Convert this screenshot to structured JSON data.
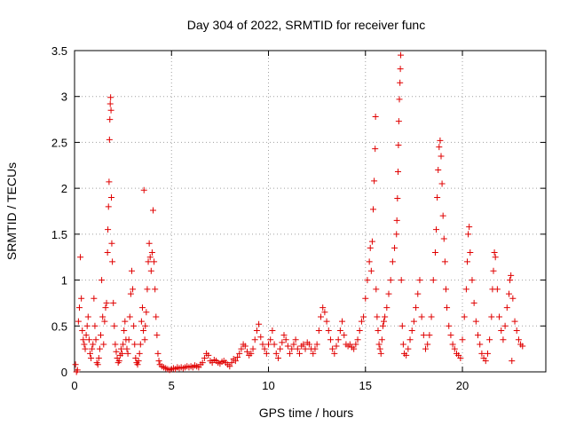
{
  "chart_data": {
    "type": "scatter",
    "title": "Day 304 of 2022, SRMTID for receiver func",
    "xlabel": "GPS time / hours",
    "ylabel": "SRMTID / TECUs",
    "xlim": [
      0,
      24.3
    ],
    "ylim": [
      0,
      3.5
    ],
    "xticks": [
      {
        "value": 0,
        "label": "0"
      },
      {
        "value": 5,
        "label": "5"
      },
      {
        "value": 10,
        "label": "10"
      },
      {
        "value": 15,
        "label": "15"
      },
      {
        "value": 20,
        "label": "20"
      }
    ],
    "yticks": [
      {
        "value": 0,
        "label": "0"
      },
      {
        "value": 0.5,
        "label": "0.5"
      },
      {
        "value": 1,
        "label": "1"
      },
      {
        "value": 1.5,
        "label": "1.5"
      },
      {
        "value": 2,
        "label": "2"
      },
      {
        "value": 2.5,
        "label": "2.5"
      },
      {
        "value": 3,
        "label": "3"
      },
      {
        "value": 3.5,
        "label": "3.5"
      }
    ],
    "grid": true,
    "marker": "+",
    "color": "#e00000",
    "series": [
      {
        "name": "SRMTID",
        "points": [
          [
            0.05,
            0.08
          ],
          [
            0.1,
            0.0
          ],
          [
            0.15,
            0.02
          ],
          [
            0.2,
            0.55
          ],
          [
            0.25,
            0.7
          ],
          [
            0.3,
            1.25
          ],
          [
            0.35,
            0.8
          ],
          [
            0.4,
            0.45
          ],
          [
            0.45,
            0.35
          ],
          [
            0.5,
            0.3
          ],
          [
            0.55,
            0.25
          ],
          [
            0.6,
            0.4
          ],
          [
            0.65,
            0.5
          ],
          [
            0.7,
            0.6
          ],
          [
            0.75,
            0.35
          ],
          [
            0.8,
            0.2
          ],
          [
            0.85,
            0.15
          ],
          [
            0.9,
            0.25
          ],
          [
            0.95,
            0.3
          ],
          [
            1.0,
            0.8
          ],
          [
            1.05,
            0.5
          ],
          [
            1.1,
            0.35
          ],
          [
            1.15,
            0.1
          ],
          [
            1.2,
            0.08
          ],
          [
            1.25,
            0.15
          ],
          [
            1.3,
            0.25
          ],
          [
            1.35,
            0.4
          ],
          [
            1.4,
            1.0
          ],
          [
            1.45,
            0.6
          ],
          [
            1.5,
            0.3
          ],
          [
            1.55,
            0.55
          ],
          [
            1.6,
            0.7
          ],
          [
            1.65,
            0.75
          ],
          [
            1.7,
            1.3
          ],
          [
            1.72,
            1.55
          ],
          [
            1.75,
            1.8
          ],
          [
            1.78,
            2.07
          ],
          [
            1.8,
            2.53
          ],
          [
            1.82,
            2.75
          ],
          [
            1.84,
            2.92
          ],
          [
            1.86,
            2.99
          ],
          [
            1.88,
            2.85
          ],
          [
            1.9,
            1.9
          ],
          [
            1.92,
            1.4
          ],
          [
            1.95,
            1.2
          ],
          [
            2.0,
            0.75
          ],
          [
            2.05,
            0.5
          ],
          [
            2.1,
            0.3
          ],
          [
            2.15,
            0.22
          ],
          [
            2.2,
            0.15
          ],
          [
            2.25,
            0.1
          ],
          [
            2.3,
            0.12
          ],
          [
            2.35,
            0.18
          ],
          [
            2.4,
            0.25
          ],
          [
            2.45,
            0.2
          ],
          [
            2.5,
            0.3
          ],
          [
            2.55,
            0.45
          ],
          [
            2.6,
            0.55
          ],
          [
            2.65,
            0.35
          ],
          [
            2.7,
            0.25
          ],
          [
            2.75,
            0.2
          ],
          [
            2.8,
            0.35
          ],
          [
            2.85,
            0.6
          ],
          [
            2.9,
            0.85
          ],
          [
            2.95,
            1.1
          ],
          [
            3.0,
            0.9
          ],
          [
            3.05,
            0.5
          ],
          [
            3.1,
            0.3
          ],
          [
            3.15,
            0.15
          ],
          [
            3.2,
            0.1
          ],
          [
            3.25,
            0.08
          ],
          [
            3.3,
            0.12
          ],
          [
            3.35,
            0.2
          ],
          [
            3.4,
            0.3
          ],
          [
            3.45,
            0.55
          ],
          [
            3.5,
            0.7
          ],
          [
            3.55,
            0.45
          ],
          [
            3.58,
            1.98
          ],
          [
            3.62,
            0.35
          ],
          [
            3.65,
            0.5
          ],
          [
            3.7,
            0.65
          ],
          [
            3.75,
            0.9
          ],
          [
            3.8,
            1.2
          ],
          [
            3.85,
            1.4
          ],
          [
            3.9,
            1.25
          ],
          [
            3.95,
            1.1
          ],
          [
            4.0,
            1.3
          ],
          [
            4.05,
            1.76
          ],
          [
            4.1,
            1.2
          ],
          [
            4.15,
            0.9
          ],
          [
            4.2,
            0.6
          ],
          [
            4.25,
            0.4
          ],
          [
            4.3,
            0.2
          ],
          [
            4.35,
            0.12
          ],
          [
            4.4,
            0.08
          ],
          [
            4.5,
            0.06
          ],
          [
            4.6,
            0.05
          ],
          [
            4.7,
            0.04
          ],
          [
            4.8,
            0.03
          ],
          [
            4.9,
            0.02
          ],
          [
            5.0,
            0.03
          ],
          [
            5.1,
            0.04
          ],
          [
            5.2,
            0.03
          ],
          [
            5.3,
            0.05
          ],
          [
            5.4,
            0.04
          ],
          [
            5.5,
            0.05
          ],
          [
            5.6,
            0.04
          ],
          [
            5.7,
            0.05
          ],
          [
            5.8,
            0.06
          ],
          [
            5.9,
            0.05
          ],
          [
            6.0,
            0.06
          ],
          [
            6.1,
            0.05
          ],
          [
            6.2,
            0.07
          ],
          [
            6.3,
            0.06
          ],
          [
            6.4,
            0.05
          ],
          [
            6.5,
            0.08
          ],
          [
            6.6,
            0.1
          ],
          [
            6.7,
            0.15
          ],
          [
            6.8,
            0.2
          ],
          [
            6.9,
            0.18
          ],
          [
            7.0,
            0.12
          ],
          [
            7.1,
            0.1
          ],
          [
            7.2,
            0.13
          ],
          [
            7.3,
            0.12
          ],
          [
            7.4,
            0.1
          ],
          [
            7.5,
            0.09
          ],
          [
            7.6,
            0.11
          ],
          [
            7.7,
            0.12
          ],
          [
            7.8,
            0.1
          ],
          [
            7.9,
            0.08
          ],
          [
            8.0,
            0.06
          ],
          [
            8.1,
            0.1
          ],
          [
            8.2,
            0.14
          ],
          [
            8.3,
            0.12
          ],
          [
            8.4,
            0.16
          ],
          [
            8.5,
            0.2
          ],
          [
            8.6,
            0.25
          ],
          [
            8.7,
            0.3
          ],
          [
            8.8,
            0.28
          ],
          [
            8.9,
            0.22
          ],
          [
            9.0,
            0.18
          ],
          [
            9.1,
            0.2
          ],
          [
            9.2,
            0.25
          ],
          [
            9.3,
            0.35
          ],
          [
            9.4,
            0.45
          ],
          [
            9.5,
            0.52
          ],
          [
            9.6,
            0.38
          ],
          [
            9.7,
            0.3
          ],
          [
            9.8,
            0.25
          ],
          [
            9.9,
            0.2
          ],
          [
            10.0,
            0.3
          ],
          [
            10.1,
            0.35
          ],
          [
            10.2,
            0.45
          ],
          [
            10.3,
            0.3
          ],
          [
            10.4,
            0.2
          ],
          [
            10.5,
            0.15
          ],
          [
            10.6,
            0.25
          ],
          [
            10.7,
            0.32
          ],
          [
            10.8,
            0.4
          ],
          [
            10.9,
            0.35
          ],
          [
            11.0,
            0.28
          ],
          [
            11.1,
            0.2
          ],
          [
            11.2,
            0.25
          ],
          [
            11.3,
            0.3
          ],
          [
            11.4,
            0.35
          ],
          [
            11.5,
            0.25
          ],
          [
            11.6,
            0.2
          ],
          [
            11.7,
            0.28
          ],
          [
            11.8,
            0.3
          ],
          [
            11.9,
            0.25
          ],
          [
            12.0,
            0.32
          ],
          [
            12.1,
            0.3
          ],
          [
            12.2,
            0.25
          ],
          [
            12.3,
            0.2
          ],
          [
            12.4,
            0.25
          ],
          [
            12.5,
            0.3
          ],
          [
            12.6,
            0.45
          ],
          [
            12.7,
            0.6
          ],
          [
            12.8,
            0.7
          ],
          [
            12.9,
            0.65
          ],
          [
            13.0,
            0.55
          ],
          [
            13.1,
            0.45
          ],
          [
            13.2,
            0.35
          ],
          [
            13.3,
            0.25
          ],
          [
            13.4,
            0.2
          ],
          [
            13.5,
            0.28
          ],
          [
            13.6,
            0.35
          ],
          [
            13.7,
            0.45
          ],
          [
            13.8,
            0.55
          ],
          [
            13.9,
            0.4
          ],
          [
            14.0,
            0.3
          ],
          [
            14.1,
            0.28
          ],
          [
            14.2,
            0.3
          ],
          [
            14.3,
            0.27
          ],
          [
            14.4,
            0.25
          ],
          [
            14.5,
            0.3
          ],
          [
            14.6,
            0.35
          ],
          [
            14.7,
            0.45
          ],
          [
            14.8,
            0.55
          ],
          [
            14.9,
            0.6
          ],
          [
            15.0,
            0.8
          ],
          [
            15.1,
            1.0
          ],
          [
            15.2,
            1.2
          ],
          [
            15.25,
            1.35
          ],
          [
            15.3,
            1.1
          ],
          [
            15.35,
            1.42
          ],
          [
            15.4,
            1.77
          ],
          [
            15.45,
            2.08
          ],
          [
            15.5,
            2.43
          ],
          [
            15.52,
            2.78
          ],
          [
            15.55,
            0.9
          ],
          [
            15.6,
            0.6
          ],
          [
            15.65,
            0.45
          ],
          [
            15.7,
            0.3
          ],
          [
            15.75,
            0.25
          ],
          [
            15.8,
            0.2
          ],
          [
            15.85,
            0.35
          ],
          [
            15.9,
            0.5
          ],
          [
            15.95,
            0.55
          ],
          [
            16.0,
            0.6
          ],
          [
            16.1,
            0.7
          ],
          [
            16.2,
            0.85
          ],
          [
            16.3,
            1.0
          ],
          [
            16.4,
            1.2
          ],
          [
            16.5,
            1.35
          ],
          [
            16.6,
            1.5
          ],
          [
            16.62,
            1.65
          ],
          [
            16.65,
            1.89
          ],
          [
            16.68,
            2.18
          ],
          [
            16.7,
            2.47
          ],
          [
            16.72,
            2.73
          ],
          [
            16.75,
            2.97
          ],
          [
            16.78,
            3.15
          ],
          [
            16.8,
            3.3
          ],
          [
            16.82,
            3.45
          ],
          [
            16.85,
            1.0
          ],
          [
            16.9,
            0.5
          ],
          [
            16.95,
            0.3
          ],
          [
            17.0,
            0.2
          ],
          [
            17.1,
            0.18
          ],
          [
            17.2,
            0.25
          ],
          [
            17.3,
            0.35
          ],
          [
            17.4,
            0.45
          ],
          [
            17.5,
            0.55
          ],
          [
            17.6,
            0.7
          ],
          [
            17.7,
            0.85
          ],
          [
            17.8,
            1.0
          ],
          [
            17.9,
            0.6
          ],
          [
            18.0,
            0.4
          ],
          [
            18.1,
            0.25
          ],
          [
            18.2,
            0.3
          ],
          [
            18.3,
            0.4
          ],
          [
            18.4,
            0.6
          ],
          [
            18.5,
            1.0
          ],
          [
            18.6,
            1.3
          ],
          [
            18.65,
            1.55
          ],
          [
            18.7,
            1.9
          ],
          [
            18.75,
            2.2
          ],
          [
            18.8,
            2.45
          ],
          [
            18.85,
            2.52
          ],
          [
            18.9,
            2.35
          ],
          [
            18.95,
            2.05
          ],
          [
            19.0,
            1.7
          ],
          [
            19.05,
            1.45
          ],
          [
            19.1,
            1.2
          ],
          [
            19.15,
            0.9
          ],
          [
            19.2,
            0.7
          ],
          [
            19.3,
            0.5
          ],
          [
            19.4,
            0.4
          ],
          [
            19.5,
            0.3
          ],
          [
            19.6,
            0.25
          ],
          [
            19.7,
            0.2
          ],
          [
            19.8,
            0.18
          ],
          [
            19.9,
            0.15
          ],
          [
            20.0,
            0.35
          ],
          [
            20.1,
            0.6
          ],
          [
            20.2,
            0.9
          ],
          [
            20.25,
            1.2
          ],
          [
            20.3,
            1.5
          ],
          [
            20.35,
            1.58
          ],
          [
            20.4,
            1.3
          ],
          [
            20.5,
            1.0
          ],
          [
            20.6,
            0.75
          ],
          [
            20.7,
            0.55
          ],
          [
            20.8,
            0.4
          ],
          [
            20.9,
            0.3
          ],
          [
            21.0,
            0.2
          ],
          [
            21.1,
            0.15
          ],
          [
            21.2,
            0.12
          ],
          [
            21.3,
            0.2
          ],
          [
            21.4,
            0.35
          ],
          [
            21.5,
            0.6
          ],
          [
            21.55,
            0.9
          ],
          [
            21.6,
            1.1
          ],
          [
            21.65,
            1.3
          ],
          [
            21.7,
            1.25
          ],
          [
            21.8,
            0.9
          ],
          [
            21.9,
            0.6
          ],
          [
            22.0,
            0.45
          ],
          [
            22.1,
            0.35
          ],
          [
            22.2,
            0.5
          ],
          [
            22.3,
            0.7
          ],
          [
            22.4,
            0.85
          ],
          [
            22.45,
            1.0
          ],
          [
            22.5,
            1.05
          ],
          [
            22.55,
            0.12
          ],
          [
            22.6,
            0.8
          ],
          [
            22.7,
            0.55
          ],
          [
            22.8,
            0.45
          ],
          [
            22.9,
            0.35
          ],
          [
            23.0,
            0.3
          ],
          [
            23.1,
            0.28
          ]
        ]
      }
    ]
  }
}
